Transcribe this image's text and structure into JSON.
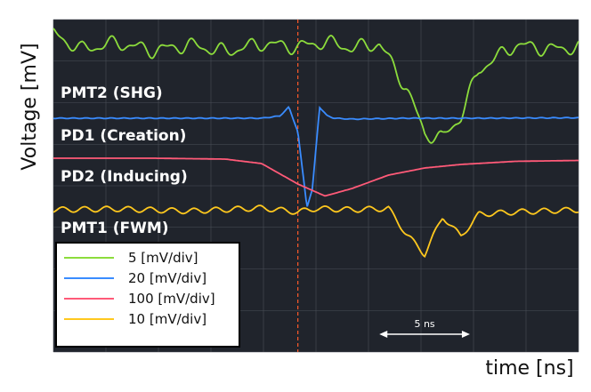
{
  "chart_data": {
    "type": "line",
    "title": "",
    "xlabel": "time [ns]",
    "ylabel": "Voltage [mV]",
    "background": "#20242c",
    "grid": true,
    "grid_color": "#4a4f58",
    "marker_line_color": "#ff5a2a",
    "marker_time_ns": 0,
    "x_range_ns": [
      -13.5,
      15.5
    ],
    "scale_bar": {
      "label": "5 ns",
      "start_ns": 4.5,
      "end_ns": 9.5
    },
    "series": [
      {
        "name": "PMT2 (SHG)",
        "scale": "5 [mV/div]",
        "color": "#8cdc3c",
        "x": [
          -13.5,
          -12,
          -10,
          -8,
          -6,
          -4,
          -2,
          0,
          1.5,
          3,
          4.5,
          6,
          7,
          8,
          9,
          10,
          12,
          14,
          15.5
        ],
        "y": [
          60,
          25,
          40,
          22,
          35,
          20,
          38,
          30,
          42,
          28,
          38,
          -62,
          -165,
          -175,
          -125,
          -20,
          35,
          25,
          30
        ]
      },
      {
        "name": "PD1 (Creation)",
        "scale": "20 [mV/div]",
        "color": "#3a8cff",
        "x": [
          -13.5,
          -8,
          -2,
          -1,
          -0.5,
          0,
          0.5,
          0.8,
          1.2,
          1.6,
          2,
          3,
          6,
          10,
          15.5
        ],
        "y": [
          0,
          0,
          0,
          5,
          25,
          -30,
          -200,
          -160,
          25,
          6,
          0,
          -2,
          0,
          0,
          1
        ]
      },
      {
        "name": "PD2 (Inducing)",
        "scale": "100 [mV/div]",
        "color": "#ff5a78",
        "x": [
          -13.5,
          -8,
          -4,
          -2,
          0,
          1.5,
          3,
          5,
          7,
          9,
          12,
          15.5
        ],
        "y": [
          0,
          0,
          -2,
          -12,
          -58,
          -85,
          -68,
          -38,
          -22,
          -14,
          -7,
          -5
        ]
      },
      {
        "name": "PMT1 (FWM)",
        "scale": "10 [mV/div]",
        "color": "#ffc81e",
        "x": [
          -13.5,
          -10,
          -6,
          -2,
          0,
          1,
          3,
          5,
          6,
          7,
          8,
          9,
          10,
          12,
          15.5
        ],
        "y": [
          0,
          2,
          -3,
          4,
          -5,
          3,
          0,
          3,
          -55,
          -100,
          -15,
          -60,
          -10,
          -5,
          0
        ]
      }
    ]
  }
}
